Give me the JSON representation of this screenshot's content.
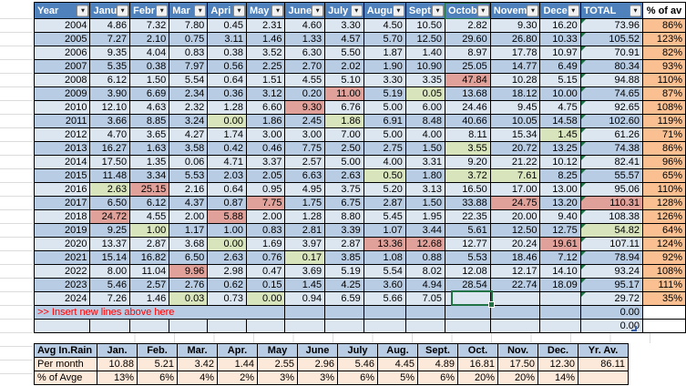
{
  "colors": {
    "header_blue": "#4f81bd",
    "row_light": "#dce6f1",
    "row_dark": "#b8cce4",
    "highlight_red": "#e0a19a",
    "highlight_green": "#d8e4bc",
    "pct_column_orange": "#fbc091",
    "summary_peach": "#fde9d9",
    "insert_text_red": "#ff0000",
    "selection_green": "#217346",
    "formula_triangle_green": "#1e7145"
  },
  "main_table": {
    "columns": [
      "Year",
      "Janu",
      "Febr",
      "Mar",
      "Apri",
      "May",
      "June",
      "July",
      "Augu",
      "Sept",
      "Octob",
      "Novem",
      "Dece",
      "TOTAL",
      "% of av"
    ],
    "rows": [
      {
        "year": "2004",
        "values": [
          "4.86",
          "7.32",
          "7.80",
          "0.45",
          "2.31",
          "4.60",
          "3.30",
          "4.50",
          "10.50",
          "2.82",
          "9.30",
          "16.20"
        ],
        "total": "73.96",
        "pct": "86%"
      },
      {
        "year": "2005",
        "values": [
          "7.27",
          "2.10",
          "0.75",
          "3.11",
          "1.46",
          "1.33",
          "4.57",
          "5.70",
          "12.50",
          "29.60",
          "26.80",
          "10.33"
        ],
        "total": "105.52",
        "pct": "123%"
      },
      {
        "year": "2006",
        "values": [
          "9.35",
          "4.04",
          "0.83",
          "0.38",
          "3.52",
          "6.30",
          "5.50",
          "1.87",
          "1.40",
          "8.97",
          "17.78",
          "10.97"
        ],
        "total": "70.91",
        "pct": "82%"
      },
      {
        "year": "2007",
        "values": [
          "5.35",
          "0.38",
          "7.97",
          "0.56",
          "2.25",
          "2.70",
          "2.02",
          "1.90",
          "10.90",
          "25.05",
          "14.77",
          "6.49"
        ],
        "total": "80.34",
        "pct": "93%"
      },
      {
        "year": "2008",
        "values": [
          "6.12",
          "1.50",
          "5.54",
          "0.64",
          "1.51",
          "4.55",
          "5.10",
          "3.30",
          "3.35",
          "47.84",
          "10.28",
          "5.15"
        ],
        "total": "94.88",
        "pct": "110%",
        "hl": {
          "9": "red"
        }
      },
      {
        "year": "2009",
        "values": [
          "3.90",
          "6.69",
          "2.34",
          "0.36",
          "3.12",
          "0.20",
          "11.00",
          "5.19",
          "0.05",
          "13.68",
          "18.12",
          "10.00"
        ],
        "total": "74.65",
        "pct": "87%",
        "hl": {
          "6": "red",
          "8": "green"
        }
      },
      {
        "year": "2010",
        "values": [
          "12.10",
          "4.63",
          "2.32",
          "1.28",
          "6.60",
          "9.30",
          "6.76",
          "5.00",
          "6.00",
          "24.46",
          "9.45",
          "4.75"
        ],
        "total": "92.65",
        "pct": "108%",
        "hl": {
          "5": "red"
        }
      },
      {
        "year": "2011",
        "values": [
          "3.66",
          "8.85",
          "3.24",
          "0.00",
          "1.86",
          "2.45",
          "1.86",
          "6.91",
          "8.48",
          "40.66",
          "10.05",
          "14.58"
        ],
        "total": "102.60",
        "pct": "119%",
        "hl": {
          "3": "green",
          "6": "green"
        }
      },
      {
        "year": "2012",
        "values": [
          "4.70",
          "3.65",
          "4.27",
          "1.74",
          "3.00",
          "3.00",
          "7.00",
          "5.00",
          "4.00",
          "8.11",
          "15.34",
          "1.45"
        ],
        "total": "61.26",
        "pct": "71%",
        "hl": {
          "11": "green"
        }
      },
      {
        "year": "2013",
        "values": [
          "16.27",
          "1.63",
          "3.58",
          "0.42",
          "0.46",
          "7.75",
          "2.50",
          "2.75",
          "1.50",
          "3.55",
          "20.72",
          "13.25"
        ],
        "total": "74.38",
        "pct": "86%",
        "hl": {
          "9": "green"
        }
      },
      {
        "year": "2014",
        "values": [
          "17.50",
          "1.35",
          "0.06",
          "4.71",
          "3.37",
          "2.57",
          "5.00",
          "4.00",
          "3.31",
          "9.20",
          "21.22",
          "10.12"
        ],
        "total": "82.41",
        "pct": "96%"
      },
      {
        "year": "2015",
        "values": [
          "11.48",
          "3.34",
          "5.53",
          "2.03",
          "2.05",
          "6.63",
          "2.63",
          "0.50",
          "1.80",
          "3.72",
          "7.61",
          "8.25"
        ],
        "total": "55.57",
        "pct": "65%",
        "hl": {
          "7": "green",
          "9": "green",
          "10": "green"
        }
      },
      {
        "year": "2016",
        "values": [
          "2.63",
          "25.15",
          "2.16",
          "0.64",
          "0.95",
          "4.95",
          "3.75",
          "5.20",
          "3.13",
          "16.50",
          "17.00",
          "13.00"
        ],
        "total": "95.06",
        "pct": "110%",
        "hl": {
          "0": "green",
          "1": "red"
        }
      },
      {
        "year": "2017",
        "values": [
          "6.50",
          "6.12",
          "4.37",
          "0.87",
          "7.75",
          "1.75",
          "6.75",
          "2.87",
          "1.50",
          "33.88",
          "24.75",
          "13.20"
        ],
        "total": "110.31",
        "pct": "128%",
        "hl": {
          "4": "red",
          "10": "red"
        },
        "total_hl": "red"
      },
      {
        "year": "2018",
        "values": [
          "24.72",
          "4.55",
          "2.00",
          "5.88",
          "2.00",
          "1.28",
          "8.80",
          "5.45",
          "1.95",
          "22.35",
          "20.00",
          "9.40"
        ],
        "total": "108.38",
        "pct": "126%",
        "hl": {
          "0": "red",
          "3": "red"
        }
      },
      {
        "year": "2019",
        "values": [
          "9.25",
          "1.00",
          "1.17",
          "1.00",
          "0.83",
          "2.81",
          "3.39",
          "1.07",
          "3.44",
          "5.61",
          "12.50",
          "12.75"
        ],
        "total": "54.82",
        "pct": "64%",
        "hl": {
          "1": "green"
        },
        "total_hl": "green"
      },
      {
        "year": "2020",
        "values": [
          "13.37",
          "2.87",
          "3.68",
          "0.00",
          "1.69",
          "3.97",
          "2.87",
          "13.36",
          "12.68",
          "12.77",
          "20.24",
          "19.61"
        ],
        "total": "107.11",
        "pct": "124%",
        "hl": {
          "3": "green",
          "7": "red",
          "8": "red",
          "11": "red"
        }
      },
      {
        "year": "2021",
        "values": [
          "15.14",
          "16.82",
          "6.50",
          "2.63",
          "0.76",
          "0.17",
          "3.85",
          "1.08",
          "0.88",
          "5.53",
          "18.46",
          "7.12"
        ],
        "total": "78.94",
        "pct": "92%",
        "hl": {
          "5": "green"
        }
      },
      {
        "year": "2022",
        "values": [
          "8.00",
          "11.04",
          "9.96",
          "2.98",
          "0.47",
          "3.69",
          "5.19",
          "5.54",
          "8.02",
          "12.08",
          "12.17",
          "14.10"
        ],
        "total": "93.24",
        "pct": "108%",
        "hl": {
          "2": "red"
        }
      },
      {
        "year": "2023",
        "values": [
          "5.46",
          "2.57",
          "2.76",
          "0.62",
          "0.15",
          "1.45",
          "4.25",
          "3.60",
          "4.94",
          "28.54",
          "22.74",
          "18.09"
        ],
        "total": "95.17",
        "pct": "111%"
      },
      {
        "year": "2024",
        "values": [
          "7.26",
          "1.46",
          "0.03",
          "0.73",
          "0.00",
          "0.94",
          "6.59",
          "5.66",
          "7.05",
          "",
          "",
          ""
        ],
        "total": "29.72",
        "pct": "35%",
        "hl": {
          "2": "green",
          "4": "green"
        }
      }
    ],
    "insert_row": {
      "label": ">> Insert new lines above here",
      "total": "0.00",
      "pct": ""
    },
    "blank_row": {
      "total": "0.00",
      "pct": ""
    }
  },
  "summary_table": {
    "header": [
      "Avg In.Rain",
      "Jan.",
      "Feb.",
      "Mar.",
      "Apr.",
      "May",
      "June",
      "July",
      "Aug.",
      "Sept.",
      "Oct.",
      "Nov.",
      "Dec.",
      "Yr. Av."
    ],
    "rows": [
      {
        "label": "Per month",
        "values": [
          "10.88",
          "5.21",
          "3.42",
          "1.44",
          "2.55",
          "2.96",
          "5.46",
          "4.45",
          "4.89",
          "16.81",
          "17.50",
          "12.30",
          "86.11"
        ]
      },
      {
        "label": "% of Avge",
        "values": [
          "13%",
          "6%",
          "4%",
          "2%",
          "3%",
          "3%",
          "6%",
          "5%",
          "6%",
          "20%",
          "20%",
          "14%",
          ""
        ]
      }
    ]
  },
  "selection": {
    "active_cell": {
      "year": "2024",
      "month": "Octob"
    },
    "highlighted_header": "Octob"
  }
}
